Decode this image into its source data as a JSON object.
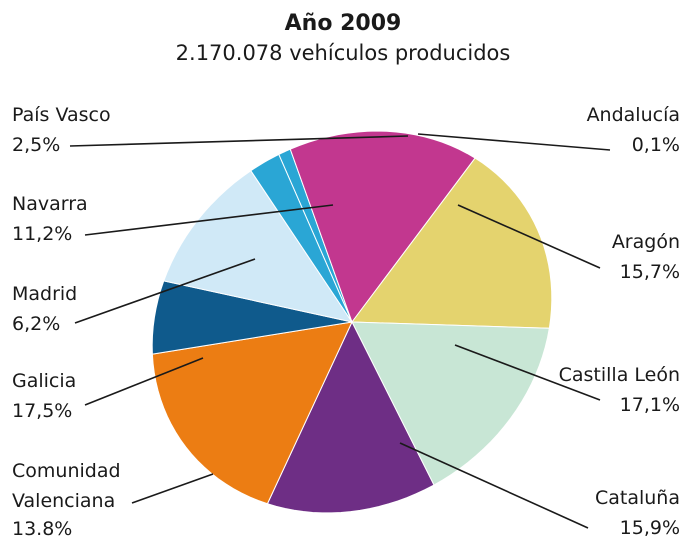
{
  "chart_data": {
    "type": "pie",
    "title": "Año 2009",
    "subtitle": "2.170.078 vehículos producidos",
    "slices": [
      {
        "name": "Andalucía",
        "value": 0.1,
        "label": "0,1%",
        "color": "#2aa6d5"
      },
      {
        "name": "Aragón",
        "value": 15.7,
        "label": "15,7%",
        "color": "#c2378f"
      },
      {
        "name": "Castilla León",
        "value": 17.1,
        "label": "17,1%",
        "color": "#e4d36e"
      },
      {
        "name": "Cataluña",
        "value": 15.9,
        "label": "15,9%",
        "color": "#c8e6d5"
      },
      {
        "name": "Comunidad Valenciana",
        "value": 13.8,
        "label": "13.8%",
        "color": "#6e2e85"
      },
      {
        "name": "Galicia",
        "value": 17.5,
        "label": "17,5%",
        "color": "#ec7d13"
      },
      {
        "name": "Madrid",
        "value": 6.2,
        "label": "6,2%",
        "color": "#0f5a8c"
      },
      {
        "name": "Navarra",
        "value": 11.2,
        "label": "11,2%",
        "color": "#d0e9f7"
      },
      {
        "name": "País Vasco",
        "value": 2.5,
        "label": "2,5%",
        "color": "#2aa6d5"
      }
    ]
  }
}
